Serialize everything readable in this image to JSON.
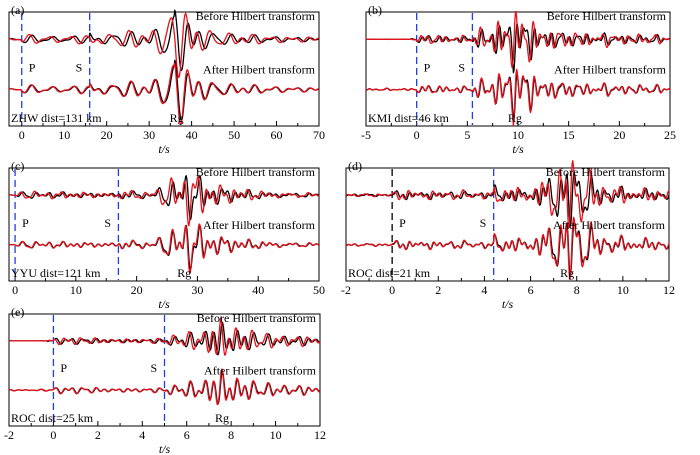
{
  "colors": {
    "original": "#000000",
    "hilbert": "#e8101a",
    "p_marker": "#1f3fe0",
    "s_marker": "#1f3fe0",
    "d_p_marker": "#000000"
  },
  "chart_data": [
    {
      "id": "a",
      "label": "(a)",
      "type": "line",
      "xlabel": "t/s",
      "xlim": [
        -3,
        70
      ],
      "xticks": [
        0,
        10,
        20,
        30,
        40,
        50,
        60,
        70
      ],
      "station": "ZHW dist=131 km",
      "top_label": "Before Hilbert transform",
      "bottom_label": "After Hilbert transform",
      "phases": {
        "P": 0,
        "S": 16,
        "Rg": 36
      },
      "phase_labels": {
        "P": "P",
        "S": "S",
        "Rg": "Rg"
      },
      "seed": 11
    },
    {
      "id": "b",
      "label": "(b)",
      "type": "line",
      "xlabel": "t/s",
      "xlim": [
        -5,
        25
      ],
      "xticks": [
        -5,
        0,
        5,
        10,
        15,
        20,
        25
      ],
      "station": "KMI dist=46 km",
      "top_label": "Before Hilbert transform",
      "bottom_label": "After Hilbert transform",
      "phases": {
        "P": 0,
        "S": 5.5,
        "Rg": 9.5
      },
      "phase_labels": {
        "P": "P",
        "S": "S",
        "Rg": "Rg"
      },
      "seed": 23
    },
    {
      "id": "c",
      "label": "(c)",
      "type": "line",
      "xlabel": "t/s",
      "xlim": [
        -1,
        50
      ],
      "xticks": [
        0,
        10,
        20,
        30,
        40,
        50
      ],
      "station": "YYU dist=121 km",
      "top_label": "Before Hilbert transform",
      "bottom_label": "After Hilbert transform",
      "phases": {
        "P": 0,
        "S": 17,
        "Rg": 27.5
      },
      "phase_labels": {
        "P": "P",
        "S": "S",
        "Rg": "Rg"
      },
      "seed": 37
    },
    {
      "id": "d",
      "label": "(d)",
      "type": "line",
      "xlabel": "t/s",
      "xlim": [
        -2,
        12
      ],
      "xticks": [
        -2,
        0,
        2,
        4,
        6,
        8,
        10,
        12
      ],
      "station": "ROC dist=21 km",
      "top_label": "Before Hilbert transform",
      "bottom_label": "After Hilbert transform",
      "phases": {
        "P": 0,
        "S": 4.4,
        "Rg": 7.5
      },
      "phase_labels": {
        "P": "P",
        "S": "S",
        "Rg": "Rg"
      },
      "seed": 41
    },
    {
      "id": "e",
      "label": "(e)",
      "type": "line",
      "xlabel": "t/s",
      "xlim": [
        -2,
        12
      ],
      "xticks": [
        -2,
        0,
        2,
        4,
        6,
        8,
        10,
        12
      ],
      "station": "ROC dist=25 km",
      "top_label": "Before Hilbert transform",
      "bottom_label": "After Hilbert transform",
      "phases": {
        "P": 0,
        "S": 5,
        "Rg": 7.5
      },
      "phase_labels": {
        "P": "P",
        "S": "S",
        "Rg": "Rg"
      },
      "seed": 53
    }
  ]
}
